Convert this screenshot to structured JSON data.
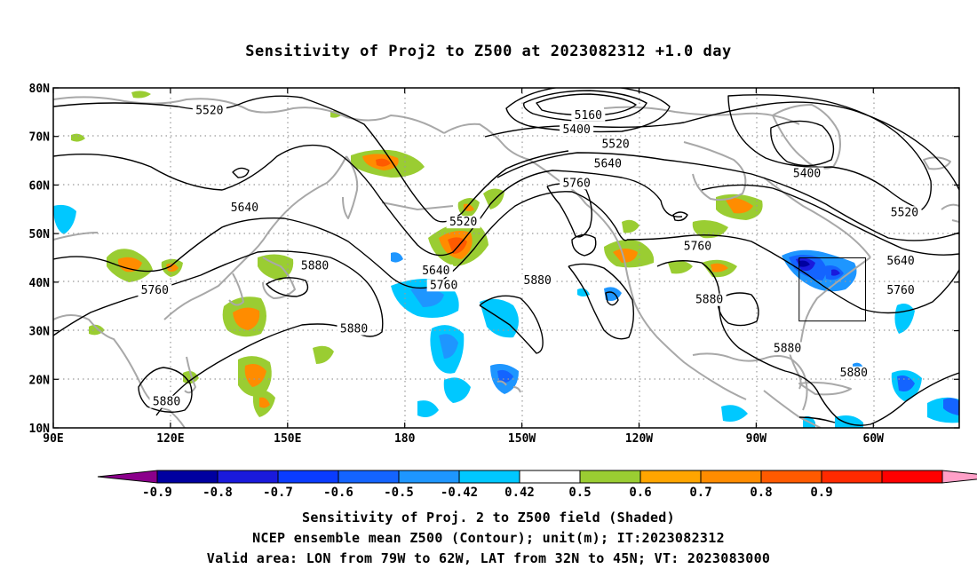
{
  "title": "Sensitivity of Proj2 to Z500 at 2023082312 +1.0 day",
  "map": {
    "lat_ticks": [
      "80N",
      "70N",
      "60N",
      "50N",
      "40N",
      "30N",
      "20N",
      "10N"
    ],
    "lon_ticks": [
      "90E",
      "120E",
      "150E",
      "180",
      "150W",
      "120W",
      "90W",
      "60W"
    ],
    "lat_values": [
      80,
      70,
      60,
      50,
      40,
      30,
      20,
      10
    ],
    "lon_values": [
      90,
      120,
      150,
      180,
      210,
      240,
      270,
      300
    ],
    "lon_range": [
      90,
      322
    ],
    "lat_range": [
      10,
      80
    ],
    "grid": "dotted",
    "colors": {
      "coastline": "#a8a8a8",
      "contour": "#000000",
      "grid": "#9a9a9a"
    },
    "valid_area": {
      "lon_west": 281,
      "lon_east": 298,
      "lat_south": 32,
      "lat_north": 45
    },
    "contour_labels": [
      {
        "text": "5520",
        "lon": 130,
        "lat": 75
      },
      {
        "text": "5640",
        "lon": 139,
        "lat": 55
      },
      {
        "text": "5880",
        "lon": 157,
        "lat": 43
      },
      {
        "text": "5760",
        "lon": 116,
        "lat": 38
      },
      {
        "text": "5880",
        "lon": 167,
        "lat": 30
      },
      {
        "text": "5880",
        "lon": 119,
        "lat": 15
      },
      {
        "text": "5160",
        "lon": 227,
        "lat": 74
      },
      {
        "text": "5400",
        "lon": 224,
        "lat": 71
      },
      {
        "text": "5520",
        "lon": 234,
        "lat": 68
      },
      {
        "text": "5640",
        "lon": 232,
        "lat": 64
      },
      {
        "text": "5760",
        "lon": 224,
        "lat": 60
      },
      {
        "text": "5520",
        "lon": 195,
        "lat": 52
      },
      {
        "text": "5640",
        "lon": 188,
        "lat": 42
      },
      {
        "text": "5760",
        "lon": 190,
        "lat": 39
      },
      {
        "text": "5880",
        "lon": 214,
        "lat": 40
      },
      {
        "text": "5760",
        "lon": 255,
        "lat": 47
      },
      {
        "text": "5880",
        "lon": 258,
        "lat": 36
      },
      {
        "text": "5400",
        "lon": 283,
        "lat": 62
      },
      {
        "text": "5520",
        "lon": 308,
        "lat": 54
      },
      {
        "text": "5640",
        "lon": 307,
        "lat": 44
      },
      {
        "text": "5760",
        "lon": 307,
        "lat": 38
      },
      {
        "text": "5880",
        "lon": 278,
        "lat": 26
      },
      {
        "text": "5880",
        "lon": 295,
        "lat": 21
      }
    ]
  },
  "colorbar": {
    "labels": [
      "-0.9",
      "-0.8",
      "-0.7",
      "-0.6",
      "-0.5",
      "-0.42",
      "0.42",
      "0.5",
      "0.6",
      "0.7",
      "0.8",
      "0.9"
    ],
    "colors": [
      "#8b008b",
      "#0000a0",
      "#1a1adc",
      "#0a3cff",
      "#1464ff",
      "#1e96ff",
      "#00c8ff",
      "#ffffff",
      "#9acd32",
      "#ffa500",
      "#ff8c00",
      "#ff5a00",
      "#ff2a00",
      "#ff0000",
      "#ffa0c8"
    ]
  },
  "captions": {
    "line1": "Sensitivity of Proj. 2 to Z500 field (Shaded)",
    "line2": "NCEP ensemble mean Z500 (Contour); unit(m); IT:2023082312",
    "line3": "Valid area: LON from 79W to 62W, LAT from 32N to 45N; VT: 2023083000"
  }
}
